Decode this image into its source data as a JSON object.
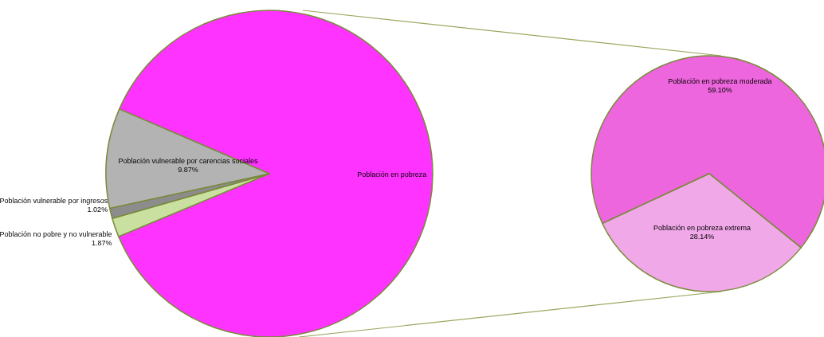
{
  "chart_data": [
    {
      "type": "pie",
      "categories": [
        "Población en pobreza",
        "Población no pobre y no vulnerable",
        "Población vulnerable por ingresos",
        "Población vulnerable por carencias sociales"
      ],
      "values": [
        87.24,
        1.87,
        1.02,
        9.87
      ],
      "value_labels": [
        null,
        "1.87%",
        "1.02%",
        "9.87%"
      ],
      "colors": [
        "#ff33ff",
        "#c9e0a0",
        "#8c8c8c",
        "#b3b3b3"
      ]
    },
    {
      "type": "pie",
      "categories": [
        "Población en pobreza moderada",
        "Población en pobreza extrema"
      ],
      "values": [
        59.1,
        28.14
      ],
      "value_labels": [
        "59.10%",
        "28.14%"
      ],
      "colors": [
        "#ee66dd",
        "#f0a8e8"
      ]
    }
  ]
}
